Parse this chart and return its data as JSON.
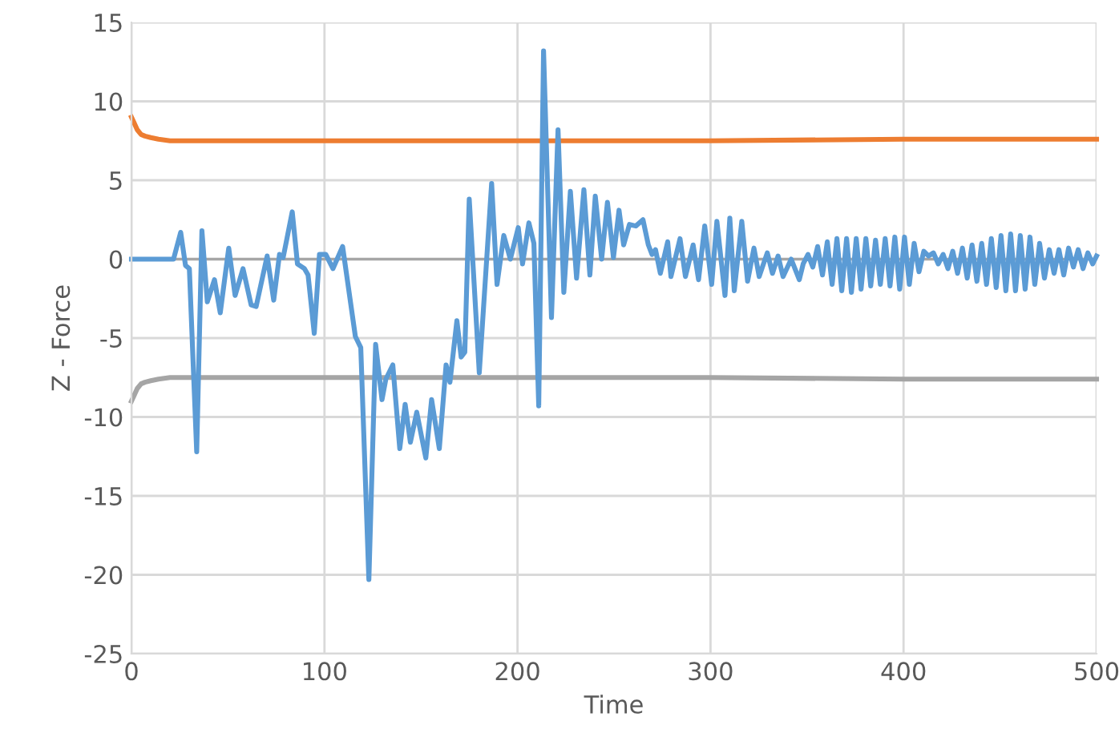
{
  "chart_data": {
    "type": "line",
    "xlabel": "Time",
    "ylabel": "Z - Force",
    "xlim": [
      0,
      500
    ],
    "ylim": [
      -25,
      15
    ],
    "xticks": [
      0,
      100,
      200,
      300,
      400,
      500
    ],
    "yticks": [
      -25,
      -20,
      -15,
      -10,
      -5,
      0,
      5,
      10,
      15
    ],
    "grid": true,
    "legend": false,
    "marker": "none",
    "line_style": "solid",
    "series": [
      {
        "color": "#ed7d31",
        "x": [
          0,
          1.5,
          3,
          5,
          7,
          10,
          14,
          20,
          30,
          60,
          100,
          200,
          300,
          400,
          500
        ],
        "values": [
          9.0,
          8.6,
          8.2,
          7.9,
          7.8,
          7.7,
          7.6,
          7.5,
          7.5,
          7.5,
          7.5,
          7.5,
          7.5,
          7.6,
          7.6
        ]
      },
      {
        "color": "#a5a5a5",
        "x": [
          0,
          1.5,
          3,
          5,
          7,
          10,
          14,
          20,
          30,
          60,
          100,
          200,
          300,
          400,
          500
        ],
        "values": [
          -9.0,
          -8.6,
          -8.2,
          -7.9,
          -7.8,
          -7.7,
          -7.6,
          -7.5,
          -7.5,
          -7.5,
          -7.5,
          -7.5,
          -7.5,
          -7.6,
          -7.6
        ]
      },
      {
        "color": "#5b9bd5",
        "x": [
          0,
          21.8,
          25.5,
          28,
          30,
          33.8,
          36.5,
          39.3,
          43,
          46,
          50.4,
          53.7,
          57.8,
          62,
          64.6,
          70.3,
          73.7,
          76.7,
          78.6,
          83.3,
          86,
          89.6,
          91.5,
          94.7,
          97.4,
          100.7,
          104.4,
          109.4,
          116,
          118.8,
          123,
          126.5,
          129.8,
          131.8,
          135.4,
          139,
          141.8,
          144.5,
          147.8,
          152.5,
          155.5,
          159.5,
          163,
          165,
          168.6,
          170.8,
          172.7,
          175,
          180.2,
          186.6,
          189.4,
          192.9,
          196.3,
          200.4,
          202.6,
          205.9,
          208.5,
          211,
          213.5,
          217.6,
          221,
          224,
          227.4,
          230.6,
          234.4,
          237.5,
          240.3,
          243.6,
          246.6,
          249.7,
          252.6,
          255,
          258,
          261.3,
          265,
          267.8,
          269.7,
          271.5,
          274,
          277.8,
          279.5,
          284.2,
          287,
          291,
          293.8,
          297,
          300.6,
          303.3,
          307.5,
          310,
          312.3,
          316.2,
          319.2,
          322.5,
          325.2,
          329.4,
          332.1,
          335,
          337.6,
          341.8,
          346,
          348,
          350.5,
          353,
          355.5,
          358,
          360.5,
          363,
          365.5,
          368,
          370.5,
          373,
          375.5,
          378,
          380.5,
          383,
          385.5,
          388,
          390.5,
          393,
          395.5,
          398,
          400.5,
          403,
          405.5,
          408,
          410.5,
          413,
          415.5,
          418,
          420.5,
          423,
          425.5,
          428,
          430.5,
          433,
          435.5,
          438,
          440.5,
          443,
          445.5,
          448,
          450.5,
          453,
          455.5,
          458,
          460.5,
          463,
          465.5,
          468,
          470.5,
          473,
          475.5,
          478,
          480.5,
          483,
          485.5,
          488,
          490.5,
          493,
          495.5,
          498,
          500
        ],
        "values": [
          0,
          0,
          1.7,
          -0.4,
          -0.6,
          -12.2,
          1.8,
          -2.7,
          -1.3,
          -3.4,
          0.7,
          -2.3,
          -0.6,
          -2.9,
          -3.0,
          0.2,
          -2.6,
          0.3,
          0.1,
          3.0,
          -0.3,
          -0.6,
          -1.0,
          -4.7,
          0.3,
          0.3,
          -0.6,
          0.8,
          -4.9,
          -5.6,
          -20.3,
          -5.4,
          -8.9,
          -7.6,
          -6.7,
          -12.0,
          -9.2,
          -11.6,
          -9.7,
          -12.6,
          -8.9,
          -12.0,
          -6.7,
          -7.8,
          -3.9,
          -6.2,
          -5.9,
          3.8,
          -7.2,
          4.8,
          -1.6,
          1.5,
          0.0,
          2.0,
          -0.3,
          2.3,
          1.0,
          -9.3,
          13.2,
          -3.7,
          8.2,
          -2.1,
          4.3,
          -1.2,
          4.4,
          -1.0,
          4.0,
          0.0,
          3.6,
          0.1,
          3.1,
          0.9,
          2.2,
          2.1,
          2.5,
          0.9,
          0.3,
          0.6,
          -0.9,
          1.1,
          -1.1,
          1.3,
          -1.1,
          0.9,
          -1.3,
          2.1,
          -1.6,
          2.4,
          -2.3,
          2.6,
          -2.0,
          2.4,
          -1.4,
          0.7,
          -1.1,
          0.4,
          -0.9,
          0.2,
          -1.1,
          0.0,
          -1.3,
          -0.3,
          0.3,
          -0.5,
          0.8,
          -1.0,
          1.1,
          -1.6,
          1.3,
          -2.0,
          1.3,
          -2.1,
          1.3,
          -1.9,
          1.3,
          -1.7,
          1.2,
          -1.6,
          1.3,
          -1.7,
          1.4,
          -1.9,
          1.4,
          -1.6,
          1.0,
          -0.8,
          0.5,
          0.2,
          0.4,
          -0.3,
          0.3,
          -0.6,
          0.5,
          -0.9,
          0.7,
          -1.2,
          0.9,
          -1.4,
          1.0,
          -1.6,
          1.3,
          -1.8,
          1.5,
          -2.0,
          1.6,
          -2.0,
          1.5,
          -1.9,
          1.4,
          -1.6,
          1.0,
          -1.2,
          0.6,
          -0.9,
          0.6,
          -1.0,
          0.7,
          -0.5,
          0.6,
          -0.6,
          0.4,
          -0.3,
          0.2
        ]
      }
    ]
  }
}
